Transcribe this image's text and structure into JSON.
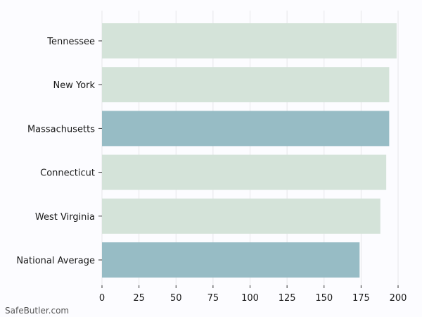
{
  "chart_data": {
    "type": "bar",
    "orientation": "horizontal",
    "categories": [
      "Tennessee",
      "New York",
      "Massachusetts",
      "Connecticut",
      "West Virginia",
      "National Average"
    ],
    "values": [
      199,
      194,
      194,
      192,
      188,
      174
    ],
    "highlighted": [
      "Massachusetts",
      "National Average"
    ],
    "xlim": [
      0,
      200
    ],
    "xticks": [
      0,
      25,
      50,
      75,
      100,
      125,
      150,
      175,
      200
    ],
    "grid": true,
    "colors": {
      "bar": "#d4e3d9",
      "highlight": "#97bcc5",
      "grid": "#e6e6ea",
      "text": "#1a1a1a",
      "background": "#fcfcff"
    }
  },
  "watermark": "SafeButler.com"
}
